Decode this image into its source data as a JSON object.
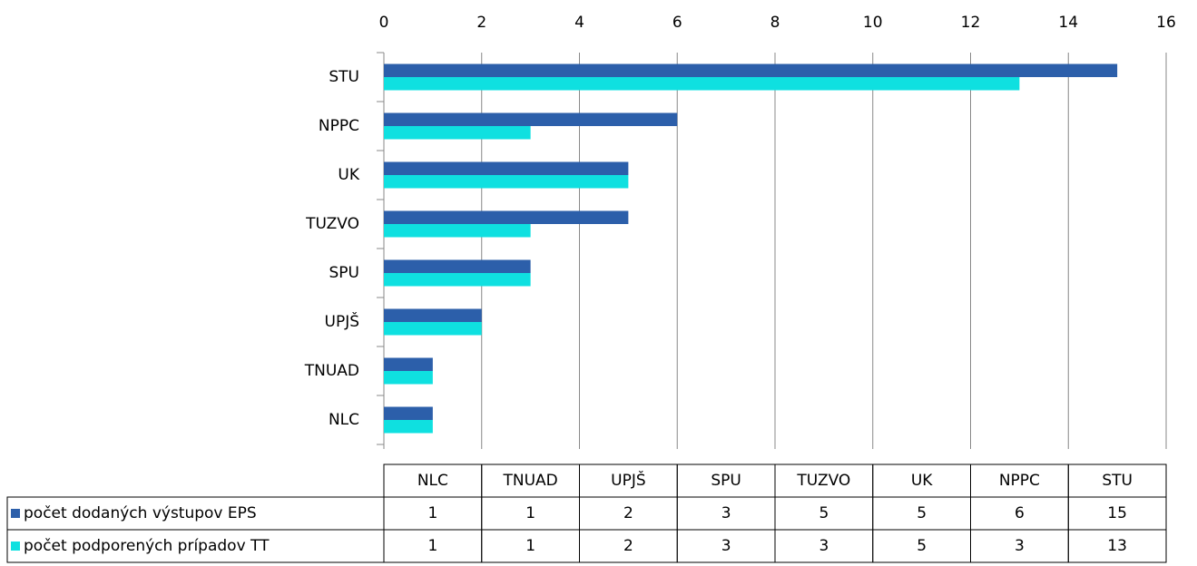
{
  "chart_data": {
    "type": "bar",
    "orientation": "horizontal",
    "categories": [
      "NLC",
      "TNUAD",
      "UPJŠ",
      "SPU",
      "TUZVO",
      "UK",
      "NPPC",
      "STU"
    ],
    "series": [
      {
        "name": "počet dodaných výstupov EPS",
        "color": "#2c5faa",
        "values": [
          1,
          1,
          2,
          3,
          5,
          5,
          6,
          15
        ]
      },
      {
        "name": "počet podporených prípadov TT",
        "color": "#0fe0e0",
        "values": [
          1,
          1,
          2,
          3,
          3,
          5,
          3,
          13
        ]
      }
    ],
    "xlim": [
      0,
      16
    ],
    "xticks": [
      0,
      2,
      4,
      6,
      8,
      10,
      12,
      14,
      16
    ],
    "grid": true,
    "data_table": true
  }
}
